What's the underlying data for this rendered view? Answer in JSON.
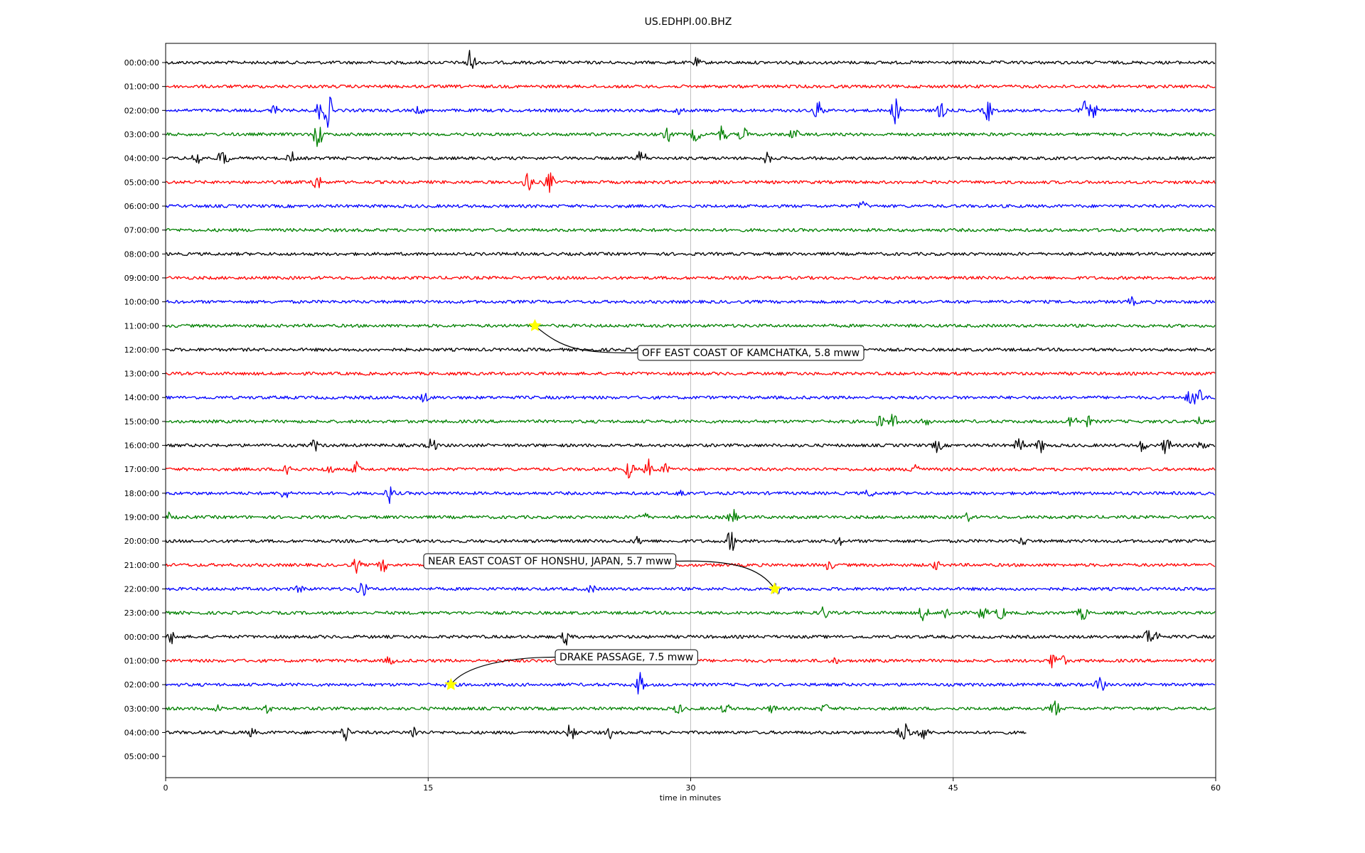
{
  "chart_data": {
    "type": "line",
    "title": "US.EDHPI.00.BHZ",
    "xlabel": "time in minutes",
    "xlim": [
      0,
      60
    ],
    "xticks": [
      0,
      15,
      30,
      45,
      60
    ],
    "xtick_labels": [
      "0",
      "15",
      "30",
      "45",
      "60"
    ],
    "grid": "vertical at x ticks",
    "colors": [
      "#000000",
      "#ff0000",
      "#0000ff",
      "#008000"
    ],
    "rows": [
      {
        "label": "00:00:00",
        "end": 60,
        "events": [
          {
            "t": 17.4,
            "a": 1.6
          },
          {
            "t": 30.3,
            "a": 0.4
          }
        ]
      },
      {
        "label": "01:00:00",
        "end": 60,
        "events": []
      },
      {
        "label": "02:00:00",
        "end": 60,
        "events": [
          {
            "t": 9.3,
            "a": 1.8
          },
          {
            "t": 8.8,
            "a": 0.9
          },
          {
            "t": 6.2,
            "a": 0.5
          },
          {
            "t": 14.5,
            "a": 0.4
          },
          {
            "t": 29.3,
            "a": 0.4
          },
          {
            "t": 37.3,
            "a": 1.1
          },
          {
            "t": 41.7,
            "a": 1.3
          },
          {
            "t": 44.3,
            "a": 0.9
          },
          {
            "t": 47.0,
            "a": 1.1
          },
          {
            "t": 52.5,
            "a": 0.9
          },
          {
            "t": 53.0,
            "a": 0.7
          }
        ]
      },
      {
        "label": "03:00:00",
        "end": 60,
        "events": [
          {
            "t": 8.7,
            "a": 1.6
          },
          {
            "t": 28.7,
            "a": 0.7
          },
          {
            "t": 30.3,
            "a": 0.8
          },
          {
            "t": 31.8,
            "a": 1.0
          },
          {
            "t": 33.0,
            "a": 0.8
          },
          {
            "t": 35.9,
            "a": 0.6
          }
        ]
      },
      {
        "label": "04:00:00",
        "end": 60,
        "events": [
          {
            "t": 1.8,
            "a": 0.9
          },
          {
            "t": 3.3,
            "a": 1.3
          },
          {
            "t": 7.2,
            "a": 0.6
          },
          {
            "t": 27.2,
            "a": 1.0
          },
          {
            "t": 34.4,
            "a": 0.6
          }
        ]
      },
      {
        "label": "05:00:00",
        "end": 60,
        "events": [
          {
            "t": 8.6,
            "a": 1.0
          },
          {
            "t": 20.7,
            "a": 1.3
          },
          {
            "t": 21.9,
            "a": 1.2
          }
        ]
      },
      {
        "label": "06:00:00",
        "end": 60,
        "events": [
          {
            "t": 39.8,
            "a": 0.5
          }
        ]
      },
      {
        "label": "07:00:00",
        "end": 60,
        "events": []
      },
      {
        "label": "08:00:00",
        "end": 60,
        "events": []
      },
      {
        "label": "09:00:00",
        "end": 60,
        "events": []
      },
      {
        "label": "10:00:00",
        "end": 60,
        "events": [
          {
            "t": 55.2,
            "a": 0.4
          }
        ]
      },
      {
        "label": "11:00:00",
        "end": 60,
        "events": []
      },
      {
        "label": "12:00:00",
        "end": 60,
        "events": []
      },
      {
        "label": "13:00:00",
        "end": 60,
        "events": []
      },
      {
        "label": "14:00:00",
        "end": 60,
        "events": [
          {
            "t": 14.8,
            "a": 0.5
          },
          {
            "t": 59.0,
            "a": 1.6
          },
          {
            "t": 58.5,
            "a": 0.6
          }
        ]
      },
      {
        "label": "15:00:00",
        "end": 60,
        "events": [
          {
            "t": 41.6,
            "a": 0.9
          },
          {
            "t": 40.8,
            "a": 0.6
          },
          {
            "t": 43.5,
            "a": 0.6
          },
          {
            "t": 51.8,
            "a": 1.0
          },
          {
            "t": 52.7,
            "a": 0.5
          },
          {
            "t": 59.0,
            "a": 0.4
          }
        ]
      },
      {
        "label": "16:00:00",
        "end": 60,
        "events": [
          {
            "t": 8.5,
            "a": 0.6
          },
          {
            "t": 15.2,
            "a": 0.9
          },
          {
            "t": 44.1,
            "a": 0.7
          },
          {
            "t": 48.8,
            "a": 1.0
          },
          {
            "t": 50.0,
            "a": 0.7
          },
          {
            "t": 55.8,
            "a": 0.6
          },
          {
            "t": 57.2,
            "a": 1.0
          },
          {
            "t": 59.2,
            "a": 0.5
          }
        ]
      },
      {
        "label": "17:00:00",
        "end": 60,
        "events": [
          {
            "t": 6.9,
            "a": 1.1
          },
          {
            "t": 9.3,
            "a": 0.6
          },
          {
            "t": 10.9,
            "a": 0.7
          },
          {
            "t": 26.5,
            "a": 1.0
          },
          {
            "t": 27.6,
            "a": 0.9
          },
          {
            "t": 28.5,
            "a": 0.6
          },
          {
            "t": 42.8,
            "a": 1.0
          }
        ]
      },
      {
        "label": "18:00:00",
        "end": 60,
        "events": [
          {
            "t": 6.8,
            "a": 0.6
          },
          {
            "t": 12.8,
            "a": 0.9
          },
          {
            "t": 29.5,
            "a": 0.4
          },
          {
            "t": 40.2,
            "a": 0.4
          }
        ]
      },
      {
        "label": "19:00:00",
        "end": 60,
        "events": [
          {
            "t": 0.1,
            "a": 0.5
          },
          {
            "t": 27.3,
            "a": 0.5
          },
          {
            "t": 32.4,
            "a": 0.9
          },
          {
            "t": 45.8,
            "a": 0.4
          }
        ]
      },
      {
        "label": "20:00:00",
        "end": 60,
        "events": [
          {
            "t": 32.3,
            "a": 1.2
          },
          {
            "t": 27.0,
            "a": 0.4
          },
          {
            "t": 38.5,
            "a": 0.4
          },
          {
            "t": 49.0,
            "a": 0.4
          }
        ]
      },
      {
        "label": "21:00:00",
        "end": 60,
        "events": [
          {
            "t": 10.9,
            "a": 0.7
          },
          {
            "t": 12.4,
            "a": 0.7
          },
          {
            "t": 37.9,
            "a": 0.5
          },
          {
            "t": 44.0,
            "a": 0.4
          }
        ]
      },
      {
        "label": "22:00:00",
        "end": 60,
        "events": [
          {
            "t": 11.2,
            "a": 1.1
          },
          {
            "t": 7.7,
            "a": 0.4
          },
          {
            "t": 24.3,
            "a": 0.4
          },
          {
            "t": 34.9,
            "a": 0.5
          }
        ]
      },
      {
        "label": "23:00:00",
        "end": 60,
        "events": [
          {
            "t": 37.6,
            "a": 0.7
          },
          {
            "t": 43.3,
            "a": 0.9
          },
          {
            "t": 44.6,
            "a": 0.7
          },
          {
            "t": 46.7,
            "a": 0.8
          },
          {
            "t": 47.7,
            "a": 0.8
          },
          {
            "t": 52.4,
            "a": 0.8
          }
        ]
      },
      {
        "label": "00:00:00",
        "end": 60,
        "events": [
          {
            "t": 0.4,
            "a": 0.8
          },
          {
            "t": 22.9,
            "a": 0.8
          },
          {
            "t": 56.1,
            "a": 0.8
          },
          {
            "t": 56.6,
            "a": 0.5
          }
        ]
      },
      {
        "label": "01:00:00",
        "end": 60,
        "events": [
          {
            "t": 12.8,
            "a": 0.4
          },
          {
            "t": 50.7,
            "a": 0.9
          },
          {
            "t": 51.2,
            "a": 0.6
          },
          {
            "t": 38.2,
            "a": 0.3
          }
        ]
      },
      {
        "label": "02:00:00",
        "end": 60,
        "events": [
          {
            "t": 27.1,
            "a": 1.2
          },
          {
            "t": 53.4,
            "a": 0.9
          },
          {
            "t": 16.2,
            "a": 0.3
          }
        ]
      },
      {
        "label": "03:00:00",
        "end": 60,
        "events": [
          {
            "t": 3.0,
            "a": 0.3
          },
          {
            "t": 5.8,
            "a": 0.4
          },
          {
            "t": 29.3,
            "a": 0.5
          },
          {
            "t": 32.0,
            "a": 0.5
          },
          {
            "t": 34.7,
            "a": 0.4
          },
          {
            "t": 50.8,
            "a": 1.0
          },
          {
            "t": 37.7,
            "a": 0.4
          }
        ]
      },
      {
        "label": "04:00:00",
        "end": 49.2,
        "events": [
          {
            "t": 4.9,
            "a": 0.4
          },
          {
            "t": 10.3,
            "a": 0.9
          },
          {
            "t": 14.2,
            "a": 0.6
          },
          {
            "t": 23.2,
            "a": 1.2
          },
          {
            "t": 25.4,
            "a": 0.5
          },
          {
            "t": 42.4,
            "a": 1.1
          },
          {
            "t": 43.3,
            "a": 1.0
          },
          {
            "t": 42.0,
            "a": 0.5
          }
        ]
      },
      {
        "label": "05:00:00",
        "end": 0,
        "events": []
      }
    ],
    "annotations": [
      {
        "text": "OFF EAST COAST OF KAMCHATKA, 5.8 mww",
        "row": 11,
        "x": 21.1
      },
      {
        "text": "NEAR EAST COAST OF HONSHU, JAPAN, 5.7 mww",
        "row": 22,
        "x": 34.8
      },
      {
        "text": "DRAKE PASSAGE, 7.5 mww",
        "row": 26,
        "x": 16.3
      }
    ]
  }
}
